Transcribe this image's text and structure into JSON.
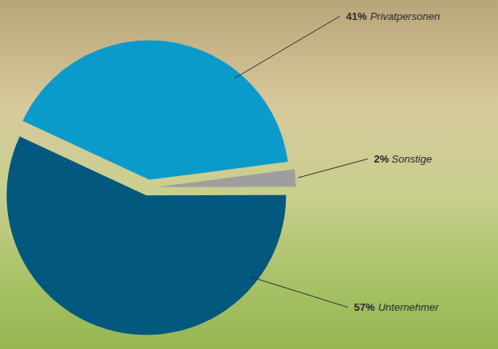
{
  "chart_data": {
    "type": "pie",
    "categories": [
      "Privatpersonen",
      "Sonstige",
      "Unternehmer"
    ],
    "values": [
      41,
      2,
      57
    ],
    "value_labels": [
      "41%",
      "2%",
      "57%"
    ],
    "colors": [
      "#0b9bcb",
      "#9e9e9e",
      "#03587e"
    ],
    "data_labels": true
  }
}
